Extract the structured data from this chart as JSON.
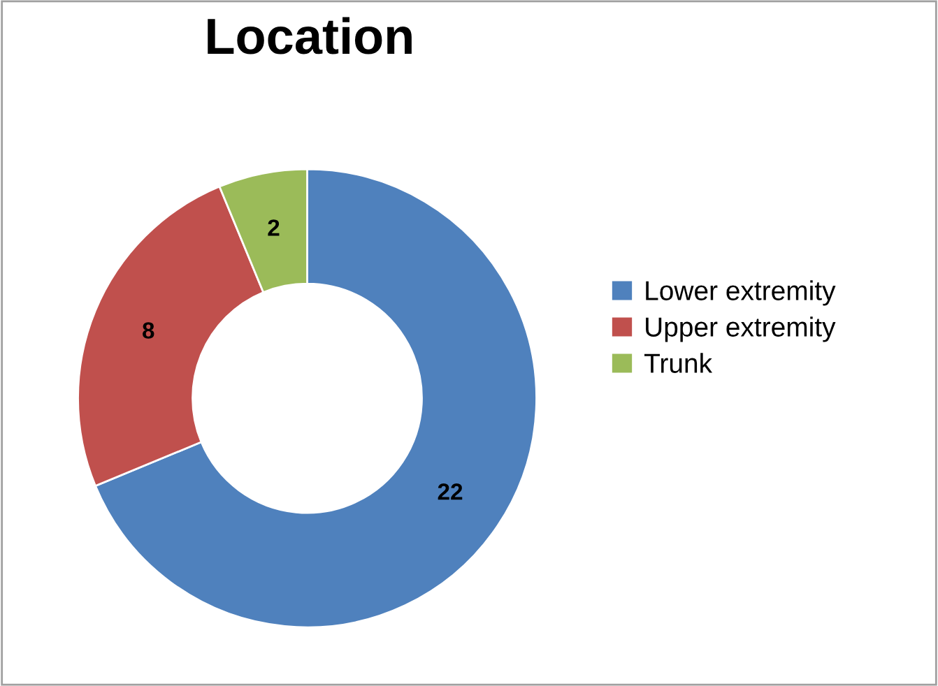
{
  "chart_data": {
    "type": "donut",
    "title": "Location",
    "categories": [
      "Lower extremity",
      "Upper extremity",
      "Trunk"
    ],
    "values": [
      22,
      8,
      2
    ],
    "colors": [
      "#4f81bd",
      "#c0504d",
      "#9bbb59"
    ],
    "data_labels": true,
    "legend": "right"
  }
}
